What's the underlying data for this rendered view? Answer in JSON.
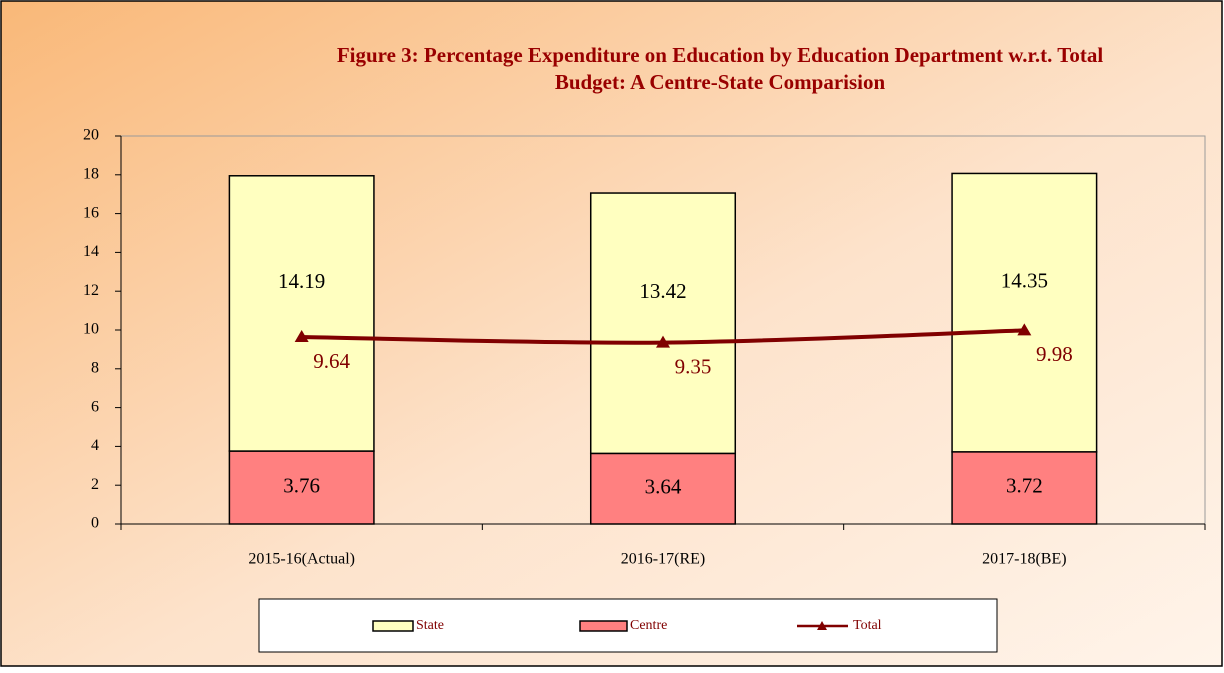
{
  "chart_data": {
    "type": "stacked_bar_line",
    "title": [
      "Figure 3: Percentage Expenditure on Education by Education Department w.r.t. Total",
      "Budget: A Centre-State Comparision"
    ],
    "categories": [
      "2015-16(Actual)",
      "2016-17(RE)",
      "2017-18(BE)"
    ],
    "series": [
      {
        "name": "State",
        "type": "bar",
        "color": "#ffffc0",
        "values": [
          14.19,
          13.42,
          14.35
        ]
      },
      {
        "name": "Centre",
        "type": "bar",
        "color": "#ff8080",
        "values": [
          3.76,
          3.64,
          3.72
        ]
      },
      {
        "name": "Total",
        "type": "line",
        "color": "#800000",
        "values": [
          9.64,
          9.35,
          9.98
        ]
      }
    ],
    "ylim": [
      0,
      20
    ],
    "yticks": [
      0,
      2,
      4,
      6,
      8,
      10,
      12,
      14,
      16,
      18,
      20
    ],
    "legend": "bottom"
  }
}
